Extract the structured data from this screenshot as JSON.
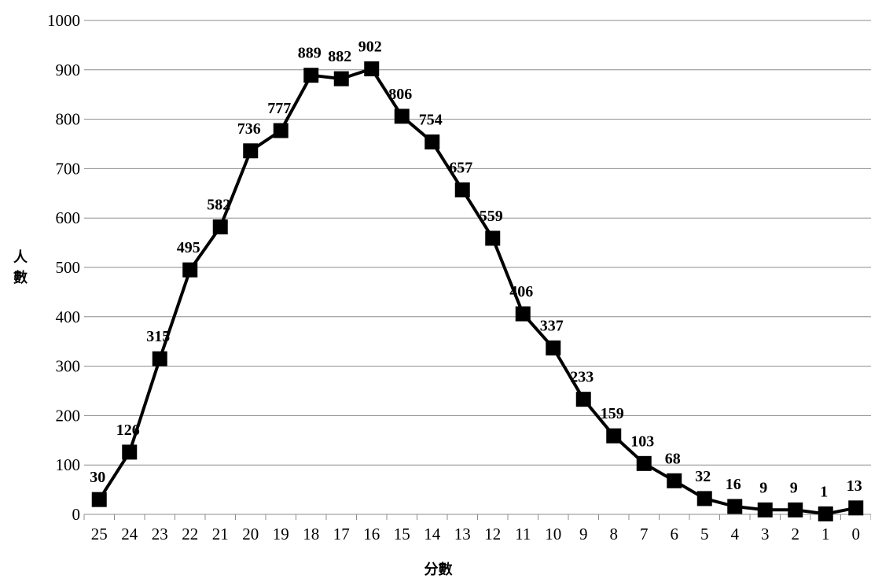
{
  "chart_data": {
    "type": "line",
    "categories": [
      "25",
      "24",
      "23",
      "22",
      "21",
      "20",
      "19",
      "18",
      "17",
      "16",
      "15",
      "14",
      "13",
      "12",
      "11",
      "10",
      "9",
      "8",
      "7",
      "6",
      "5",
      "4",
      "3",
      "2",
      "1",
      "0"
    ],
    "values": [
      30,
      126,
      315,
      495,
      582,
      736,
      777,
      889,
      882,
      902,
      806,
      754,
      657,
      559,
      406,
      337,
      233,
      159,
      103,
      68,
      32,
      16,
      9,
      9,
      1,
      13
    ],
    "title": "",
    "xlabel": "分數",
    "ylabel": "人數",
    "ylim": [
      0,
      1000
    ],
    "yticks": [
      0,
      100,
      200,
      300,
      400,
      500,
      600,
      700,
      800,
      900,
      1000
    ],
    "grid": true,
    "legend": "none",
    "marker": "square",
    "line_color": "#000000",
    "marker_color": "#000000"
  }
}
